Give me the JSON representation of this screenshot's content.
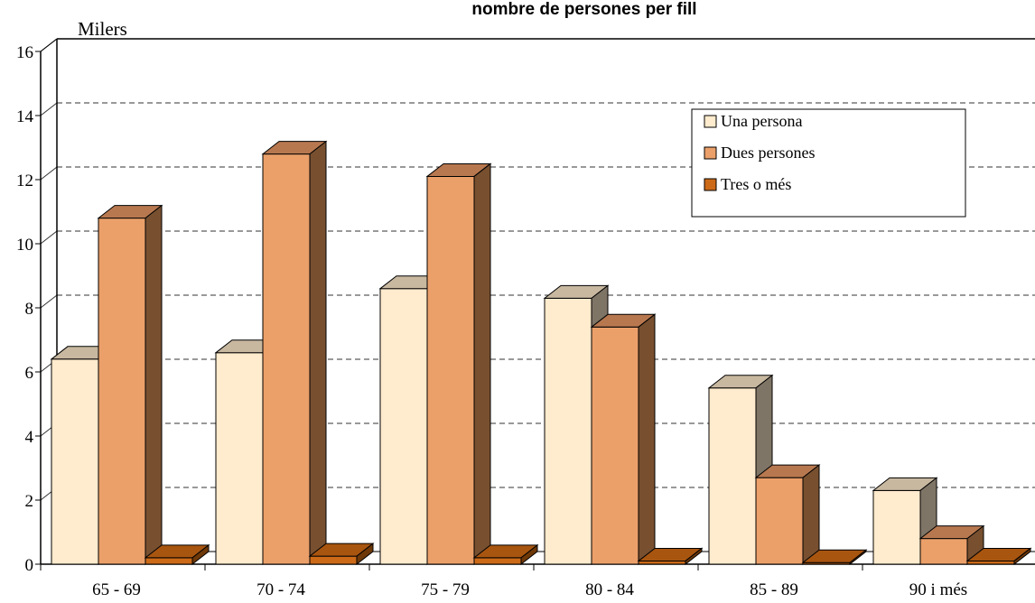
{
  "chart_data": {
    "type": "bar",
    "title": "nombre de persones per fill",
    "ylabel": "Milers",
    "xlabel": "",
    "ylim": [
      0,
      16
    ],
    "yticks": [
      "0",
      "2",
      "4",
      "6",
      "8",
      "10",
      "12",
      "14",
      "16"
    ],
    "grid": true,
    "legend_position": "top-right",
    "categories": [
      "65 - 69",
      "70 - 74",
      "75 - 79",
      "80 - 84",
      "85 - 89",
      "90 i més"
    ],
    "series": [
      {
        "name": "Una persona",
        "values": [
          6.4,
          6.6,
          8.6,
          8.3,
          5.5,
          2.3
        ],
        "color": "#FFEBCD",
        "top": "#C8B8A0",
        "side": "#7F7566"
      },
      {
        "name": "Dues persones",
        "values": [
          10.8,
          12.8,
          12.1,
          7.4,
          2.7,
          0.8
        ],
        "color": "#EBA06A",
        "top": "#B8784F",
        "side": "#785030"
      },
      {
        "name": "Tres o més",
        "values": [
          0.2,
          0.25,
          0.2,
          0.1,
          0.05,
          0.1
        ],
        "color": "#CC6A18",
        "top": "#A85510",
        "side": "#6E3808"
      }
    ]
  }
}
